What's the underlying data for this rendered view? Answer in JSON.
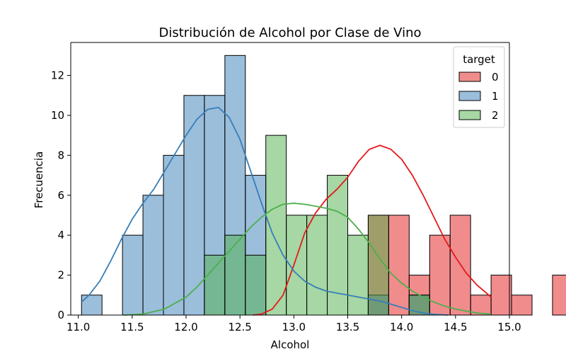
{
  "chart_data": {
    "type": "bar",
    "title": "Distribución de Alcohol por Clase de Vino",
    "xlabel": "Alcohol",
    "ylabel": "Frecuencia",
    "xlim": [
      10.93,
      15.0
    ],
    "ylim": [
      0,
      13.65
    ],
    "xticks": [
      "11.0",
      "11.5",
      "12.0",
      "12.5",
      "13.0",
      "13.5",
      "14.0",
      "14.5",
      "15.0"
    ],
    "yticks": [
      "0",
      "2",
      "4",
      "6",
      "8",
      "10",
      "12"
    ],
    "bin_start": 11.03,
    "bin_width": 0.19,
    "grid": false,
    "legend": {
      "title": "target",
      "placement": "top-right"
    },
    "series": [
      {
        "name": "0",
        "color": "#e41a1c",
        "counts": [
          0,
          0,
          0,
          0,
          0,
          0,
          0,
          0,
          0,
          0,
          0,
          0,
          0,
          0,
          5,
          5,
          2,
          4,
          5,
          1,
          2,
          1,
          0,
          2
        ],
        "kde": [
          [
            12.62,
            0.0
          ],
          [
            12.7,
            0.05
          ],
          [
            12.8,
            0.3
          ],
          [
            12.9,
            1.0
          ],
          [
            13.0,
            2.5
          ],
          [
            13.1,
            4.1
          ],
          [
            13.2,
            5.1
          ],
          [
            13.3,
            5.8
          ],
          [
            13.4,
            6.3
          ],
          [
            13.5,
            6.9
          ],
          [
            13.6,
            7.7
          ],
          [
            13.7,
            8.3
          ],
          [
            13.8,
            8.5
          ],
          [
            13.9,
            8.3
          ],
          [
            14.0,
            7.8
          ],
          [
            14.1,
            7.0
          ],
          [
            14.2,
            6.0
          ],
          [
            14.3,
            4.9
          ],
          [
            14.4,
            3.8
          ],
          [
            14.5,
            2.9
          ],
          [
            14.6,
            2.1
          ],
          [
            14.7,
            1.5
          ],
          [
            14.83,
            0.9
          ]
        ]
      },
      {
        "name": "1",
        "color": "#377eb8",
        "counts": [
          1,
          0,
          4,
          6,
          8,
          11,
          11,
          13,
          7,
          0,
          0,
          0,
          0,
          0,
          1,
          0,
          1,
          0,
          0,
          0,
          0,
          0,
          0,
          0
        ],
        "kde": [
          [
            11.03,
            0.65
          ],
          [
            11.1,
            1.0
          ],
          [
            11.2,
            1.7
          ],
          [
            11.3,
            2.7
          ],
          [
            11.4,
            3.8
          ],
          [
            11.5,
            4.8
          ],
          [
            11.6,
            5.6
          ],
          [
            11.7,
            6.3
          ],
          [
            11.8,
            7.2
          ],
          [
            11.9,
            8.1
          ],
          [
            12.0,
            9.0
          ],
          [
            12.1,
            9.8
          ],
          [
            12.2,
            10.3
          ],
          [
            12.3,
            10.4
          ],
          [
            12.4,
            9.9
          ],
          [
            12.5,
            8.8
          ],
          [
            12.6,
            7.2
          ],
          [
            12.7,
            5.6
          ],
          [
            12.8,
            4.1
          ],
          [
            12.9,
            3.0
          ],
          [
            13.0,
            2.2
          ],
          [
            13.1,
            1.7
          ],
          [
            13.2,
            1.4
          ],
          [
            13.3,
            1.2
          ],
          [
            13.4,
            1.1
          ],
          [
            13.5,
            1.0
          ],
          [
            13.6,
            0.9
          ],
          [
            13.7,
            0.8
          ],
          [
            13.8,
            0.7
          ],
          [
            13.9,
            0.55
          ],
          [
            14.0,
            0.38
          ],
          [
            14.1,
            0.22
          ],
          [
            14.2,
            0.1
          ],
          [
            14.3,
            0.04
          ],
          [
            14.43,
            0.0
          ]
        ]
      },
      {
        "name": "2",
        "color": "#4daf4a",
        "counts": [
          0,
          0,
          0,
          0,
          0,
          0,
          3,
          4,
          3,
          9,
          5,
          5,
          7,
          4,
          5,
          0,
          1,
          0,
          0,
          0,
          0,
          0,
          0,
          0
        ],
        "kde": [
          [
            11.42,
            0.0
          ],
          [
            11.6,
            0.05
          ],
          [
            11.8,
            0.3
          ],
          [
            12.0,
            0.9
          ],
          [
            12.1,
            1.4
          ],
          [
            12.2,
            2.0
          ],
          [
            12.3,
            2.6
          ],
          [
            12.4,
            3.2
          ],
          [
            12.5,
            3.8
          ],
          [
            12.6,
            4.4
          ],
          [
            12.7,
            4.9
          ],
          [
            12.8,
            5.3
          ],
          [
            12.9,
            5.55
          ],
          [
            13.0,
            5.6
          ],
          [
            13.1,
            5.55
          ],
          [
            13.2,
            5.45
          ],
          [
            13.3,
            5.35
          ],
          [
            13.4,
            5.2
          ],
          [
            13.5,
            4.9
          ],
          [
            13.6,
            4.3
          ],
          [
            13.7,
            3.6
          ],
          [
            13.8,
            2.8
          ],
          [
            13.9,
            2.1
          ],
          [
            14.0,
            1.6
          ],
          [
            14.1,
            1.2
          ],
          [
            14.2,
            0.9
          ],
          [
            14.3,
            0.65
          ],
          [
            14.4,
            0.45
          ],
          [
            14.5,
            0.3
          ],
          [
            14.6,
            0.2
          ],
          [
            14.7,
            0.1
          ],
          [
            14.83,
            0.05
          ]
        ]
      }
    ]
  }
}
